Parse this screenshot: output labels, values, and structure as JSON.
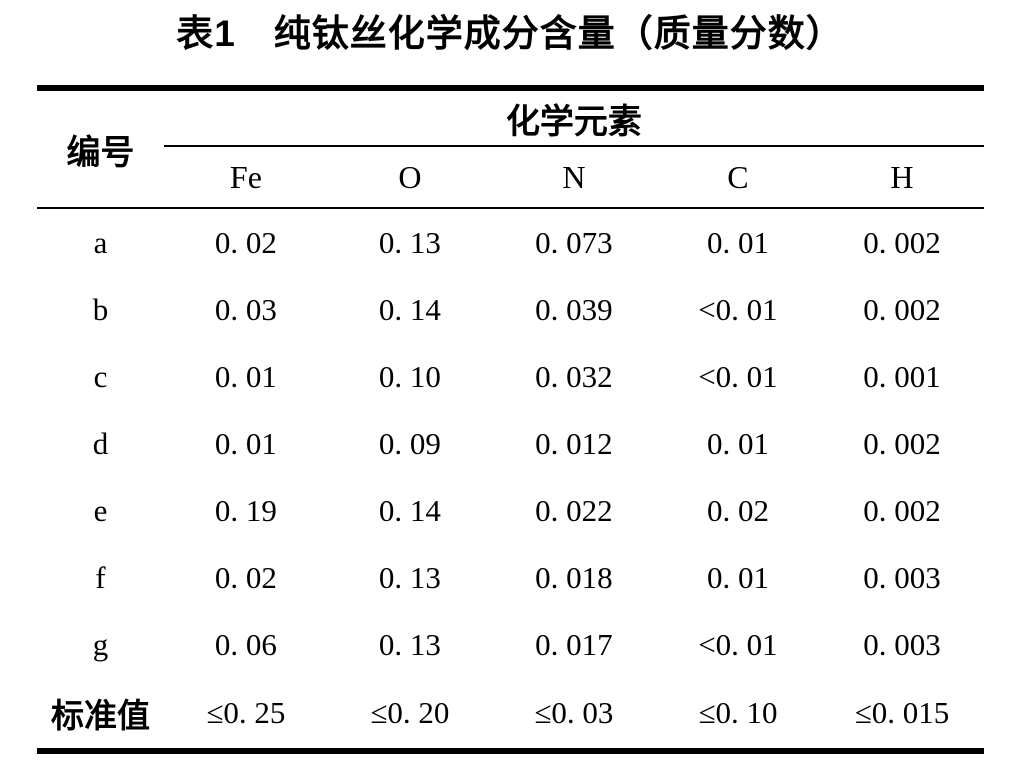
{
  "title": "表1　纯钛丝化学成分含量（质量分数）",
  "table": {
    "id_header": "编号",
    "group_header": "化学元素",
    "columns": [
      "Fe",
      "O",
      "N",
      "C",
      "H"
    ],
    "rows": [
      {
        "label": "a",
        "values": [
          "0. 02",
          "0. 13",
          "0. 073",
          "0. 01",
          "0. 002"
        ]
      },
      {
        "label": "b",
        "values": [
          "0. 03",
          "0. 14",
          "0. 039",
          "<0. 01",
          "0. 002"
        ]
      },
      {
        "label": "c",
        "values": [
          "0. 01",
          "0. 10",
          "0. 032",
          "<0. 01",
          "0. 001"
        ]
      },
      {
        "label": "d",
        "values": [
          "0. 01",
          "0. 09",
          "0. 012",
          "0. 01",
          "0. 002"
        ]
      },
      {
        "label": "e",
        "values": [
          "0. 19",
          "0. 14",
          "0. 022",
          "0. 02",
          "0. 002"
        ]
      },
      {
        "label": "f",
        "values": [
          "0. 02",
          "0. 13",
          "0. 018",
          "0. 01",
          "0. 003"
        ]
      },
      {
        "label": "g",
        "values": [
          "0. 06",
          "0. 13",
          "0. 017",
          "<0. 01",
          "0. 003"
        ]
      },
      {
        "label": "标准值",
        "values": [
          "≤0. 25",
          "≤0. 20",
          "≤0. 03",
          "≤0. 10",
          "≤0. 015"
        ]
      }
    ]
  },
  "colors": {
    "text": "#000000",
    "background": "#ffffff",
    "rule": "#000000"
  }
}
